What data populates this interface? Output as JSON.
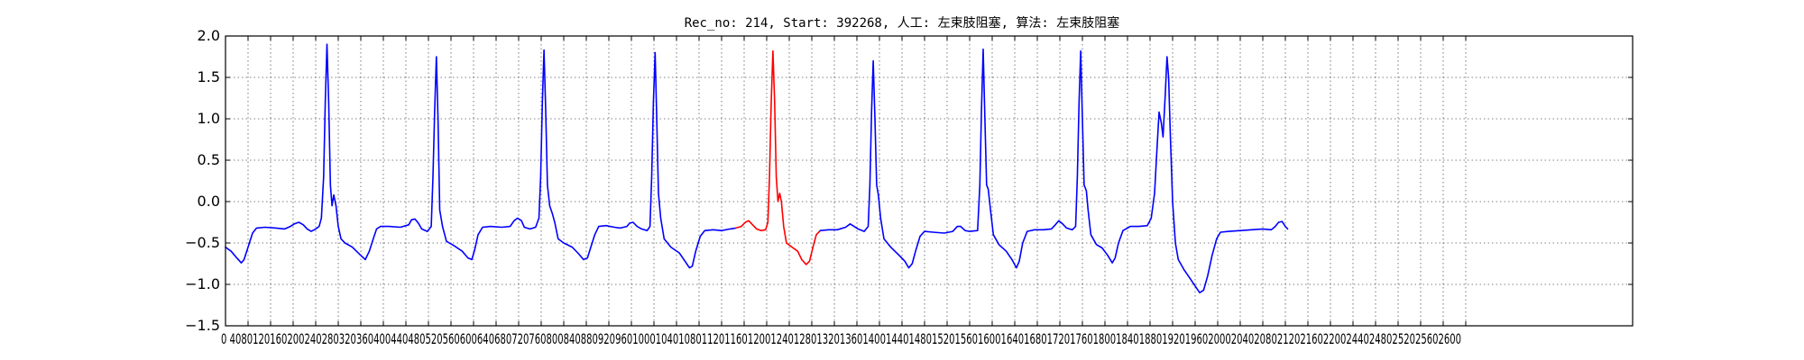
{
  "chart_data": {
    "type": "line",
    "title": "Rec_no: 214, Start: 392268, 人工: 左束肢阻塞, 算法: 左束肢阻塞",
    "xlabel": "",
    "ylabel": "",
    "xlim": [
      0,
      2200
    ],
    "ylim": [
      -1.5,
      2.0
    ],
    "x_ticks": [
      0,
      40,
      80,
      120,
      160,
      200,
      240,
      280,
      320,
      360,
      400,
      440,
      480,
      520,
      560,
      600,
      640,
      680,
      720,
      760,
      800,
      840,
      880,
      920,
      960,
      1000,
      1040,
      1080,
      1120,
      1160,
      1200,
      1240,
      1280,
      1320,
      1360,
      1400,
      1440,
      1480,
      1520,
      1560,
      1600,
      1640,
      1680,
      1720,
      1760,
      1800,
      1840,
      1880,
      1920,
      1960,
      2000,
      2040,
      2080,
      2120,
      2160,
      2200
    ],
    "x_tick_labels_text": "0 4080120160200240280320360400440480520560600640680720760800840880920960100010401080112011601200124012801320136014001440148015201560160016401680172017601800184018801920196020002040208021202160220024402480252025602600",
    "y_ticks": [
      -1.5,
      -1.0,
      -0.5,
      0.0,
      0.5,
      1.0,
      1.5,
      2.0
    ],
    "y_tick_labels": [
      "−1.5",
      "−1.0",
      "−0.5",
      "0.0",
      "0.5",
      "1.0",
      "1.5",
      "2.0"
    ],
    "grid": true,
    "series": [
      {
        "color": "#0000ff",
        "points": [
          [
            0,
            -0.55
          ],
          [
            10,
            -0.6
          ],
          [
            20,
            -0.68
          ],
          [
            28,
            -0.74
          ],
          [
            33,
            -0.7
          ],
          [
            40,
            -0.55
          ],
          [
            48,
            -0.38
          ],
          [
            55,
            -0.32
          ],
          [
            70,
            -0.31
          ],
          [
            90,
            -0.32
          ],
          [
            105,
            -0.33
          ],
          [
            115,
            -0.3
          ],
          [
            122,
            -0.27
          ],
          [
            130,
            -0.25
          ],
          [
            138,
            -0.28
          ],
          [
            145,
            -0.33
          ],
          [
            152,
            -0.36
          ],
          [
            160,
            -0.33
          ],
          [
            166,
            -0.3
          ],
          [
            170,
            -0.2
          ],
          [
            174,
            0.3
          ],
          [
            177,
            1.2
          ],
          [
            180,
            1.9
          ],
          [
            183,
            1.2
          ],
          [
            186,
            0.2
          ],
          [
            189,
            -0.05
          ],
          [
            192,
            0.08
          ],
          [
            196,
            -0.05
          ],
          [
            200,
            -0.3
          ],
          [
            205,
            -0.45
          ],
          [
            212,
            -0.5
          ],
          [
            225,
            -0.55
          ],
          [
            240,
            -0.65
          ],
          [
            248,
            -0.7
          ],
          [
            255,
            -0.6
          ],
          [
            262,
            -0.45
          ],
          [
            268,
            -0.33
          ],
          [
            275,
            -0.3
          ],
          [
            290,
            -0.3
          ],
          [
            310,
            -0.31
          ],
          [
            325,
            -0.28
          ],
          [
            330,
            -0.22
          ],
          [
            336,
            -0.21
          ],
          [
            342,
            -0.26
          ],
          [
            348,
            -0.33
          ],
          [
            358,
            -0.36
          ],
          [
            365,
            -0.3
          ],
          [
            368,
            0.3
          ],
          [
            371,
            1.1
          ],
          [
            374,
            1.75
          ],
          [
            377,
            1.0
          ],
          [
            380,
            -0.1
          ],
          [
            385,
            -0.3
          ],
          [
            392,
            -0.48
          ],
          [
            405,
            -0.53
          ],
          [
            420,
            -0.6
          ],
          [
            430,
            -0.68
          ],
          [
            437,
            -0.7
          ],
          [
            442,
            -0.58
          ],
          [
            448,
            -0.4
          ],
          [
            456,
            -0.31
          ],
          [
            470,
            -0.3
          ],
          [
            490,
            -0.31
          ],
          [
            505,
            -0.3
          ],
          [
            512,
            -0.23
          ],
          [
            518,
            -0.2
          ],
          [
            525,
            -0.23
          ],
          [
            530,
            -0.31
          ],
          [
            540,
            -0.33
          ],
          [
            550,
            -0.31
          ],
          [
            556,
            -0.2
          ],
          [
            559,
            0.3
          ],
          [
            562,
            1.2
          ],
          [
            565,
            1.83
          ],
          [
            568,
            1.1
          ],
          [
            571,
            0.2
          ],
          [
            575,
            -0.05
          ],
          [
            580,
            -0.15
          ],
          [
            584,
            -0.25
          ],
          [
            590,
            -0.45
          ],
          [
            600,
            -0.5
          ],
          [
            615,
            -0.55
          ],
          [
            625,
            -0.62
          ],
          [
            635,
            -0.7
          ],
          [
            642,
            -0.68
          ],
          [
            648,
            -0.55
          ],
          [
            655,
            -0.4
          ],
          [
            662,
            -0.3
          ],
          [
            675,
            -0.29
          ],
          [
            690,
            -0.31
          ],
          [
            700,
            -0.32
          ],
          [
            712,
            -0.3
          ],
          [
            717,
            -0.26
          ],
          [
            723,
            -0.25
          ],
          [
            730,
            -0.3
          ],
          [
            738,
            -0.33
          ],
          [
            748,
            -0.35
          ],
          [
            753,
            -0.3
          ],
          [
            756,
            0.3
          ],
          [
            759,
            1.2
          ],
          [
            762,
            1.8
          ],
          [
            765,
            1.0
          ],
          [
            768,
            0.1
          ],
          [
            772,
            -0.2
          ],
          [
            778,
            -0.45
          ],
          [
            790,
            -0.55
          ],
          [
            805,
            -0.62
          ],
          [
            815,
            -0.72
          ],
          [
            823,
            -0.8
          ],
          [
            828,
            -0.78
          ],
          [
            834,
            -0.6
          ],
          [
            842,
            -0.42
          ],
          [
            850,
            -0.35
          ],
          [
            865,
            -0.34
          ],
          [
            880,
            -0.35
          ],
          [
            895,
            -0.33
          ],
          [
            905,
            -0.32
          ]
        ]
      },
      {
        "color": "#ff0000",
        "points": [
          [
            905,
            -0.32
          ],
          [
            915,
            -0.3
          ],
          [
            922,
            -0.25
          ],
          [
            928,
            -0.23
          ],
          [
            935,
            -0.28
          ],
          [
            942,
            -0.33
          ],
          [
            950,
            -0.35
          ],
          [
            958,
            -0.34
          ],
          [
            962,
            -0.25
          ],
          [
            965,
            0.3
          ],
          [
            968,
            1.2
          ],
          [
            971,
            1.82
          ],
          [
            974,
            1.2
          ],
          [
            977,
            0.3
          ],
          [
            980,
            0.0
          ],
          [
            983,
            0.1
          ],
          [
            986,
            0.0
          ],
          [
            990,
            -0.3
          ],
          [
            995,
            -0.5
          ],
          [
            1005,
            -0.55
          ],
          [
            1015,
            -0.6
          ],
          [
            1022,
            -0.7
          ],
          [
            1030,
            -0.76
          ],
          [
            1036,
            -0.72
          ],
          [
            1042,
            -0.55
          ],
          [
            1048,
            -0.4
          ],
          [
            1055,
            -0.35
          ]
        ]
      },
      {
        "color": "#0000ff",
        "points": [
          [
            1055,
            -0.35
          ],
          [
            1070,
            -0.34
          ],
          [
            1085,
            -0.34
          ],
          [
            1100,
            -0.31
          ],
          [
            1108,
            -0.27
          ],
          [
            1115,
            -0.3
          ],
          [
            1122,
            -0.33
          ],
          [
            1133,
            -0.36
          ],
          [
            1140,
            -0.3
          ],
          [
            1143,
            0.2
          ],
          [
            1146,
            1.1
          ],
          [
            1149,
            1.7
          ],
          [
            1152,
            1.0
          ],
          [
            1155,
            0.2
          ],
          [
            1158,
            0.08
          ],
          [
            1162,
            -0.2
          ],
          [
            1168,
            -0.45
          ],
          [
            1180,
            -0.55
          ],
          [
            1195,
            -0.65
          ],
          [
            1205,
            -0.72
          ],
          [
            1212,
            -0.8
          ],
          [
            1218,
            -0.75
          ],
          [
            1224,
            -0.6
          ],
          [
            1232,
            -0.42
          ],
          [
            1240,
            -0.36
          ],
          [
            1255,
            -0.37
          ],
          [
            1275,
            -0.38
          ],
          [
            1290,
            -0.36
          ],
          [
            1298,
            -0.3
          ],
          [
            1304,
            -0.3
          ],
          [
            1312,
            -0.35
          ],
          [
            1320,
            -0.36
          ],
          [
            1334,
            -0.35
          ],
          [
            1338,
            0.2
          ],
          [
            1341,
            1.1
          ],
          [
            1344,
            1.84
          ],
          [
            1347,
            1.0
          ],
          [
            1350,
            0.2
          ],
          [
            1353,
            0.15
          ],
          [
            1357,
            -0.1
          ],
          [
            1362,
            -0.4
          ],
          [
            1372,
            -0.52
          ],
          [
            1385,
            -0.6
          ],
          [
            1395,
            -0.7
          ],
          [
            1403,
            -0.8
          ],
          [
            1408,
            -0.72
          ],
          [
            1414,
            -0.5
          ],
          [
            1422,
            -0.36
          ],
          [
            1435,
            -0.34
          ],
          [
            1450,
            -0.34
          ],
          [
            1465,
            -0.33
          ],
          [
            1472,
            -0.28
          ],
          [
            1478,
            -0.23
          ],
          [
            1485,
            -0.27
          ],
          [
            1492,
            -0.32
          ],
          [
            1502,
            -0.34
          ],
          [
            1508,
            -0.3
          ],
          [
            1511,
            0.3
          ],
          [
            1514,
            1.2
          ],
          [
            1517,
            1.82
          ],
          [
            1520,
            1.0
          ],
          [
            1523,
            0.2
          ],
          [
            1527,
            0.13
          ],
          [
            1530,
            -0.1
          ],
          [
            1535,
            -0.4
          ],
          [
            1545,
            -0.52
          ],
          [
            1555,
            -0.56
          ],
          [
            1565,
            -0.65
          ],
          [
            1573,
            -0.74
          ],
          [
            1578,
            -0.68
          ],
          [
            1584,
            -0.5
          ],
          [
            1592,
            -0.35
          ],
          [
            1605,
            -0.3
          ],
          [
            1620,
            -0.3
          ],
          [
            1635,
            -0.29
          ],
          [
            1642,
            -0.2
          ],
          [
            1648,
            0.1
          ],
          [
            1652,
            0.6
          ],
          [
            1656,
            1.08
          ],
          [
            1660,
            0.95
          ],
          [
            1663,
            0.78
          ],
          [
            1667,
            1.3
          ],
          [
            1670,
            1.75
          ],
          [
            1673,
            1.5
          ],
          [
            1676,
            0.8
          ],
          [
            1680,
            0.0
          ],
          [
            1685,
            -0.5
          ],
          [
            1690,
            -0.7
          ],
          [
            1700,
            -0.82
          ],
          [
            1710,
            -0.92
          ],
          [
            1720,
            -1.02
          ],
          [
            1728,
            -1.1
          ],
          [
            1735,
            -1.07
          ],
          [
            1742,
            -0.9
          ],
          [
            1750,
            -0.65
          ],
          [
            1758,
            -0.45
          ],
          [
            1765,
            -0.37
          ],
          [
            1780,
            -0.36
          ],
          [
            1800,
            -0.35
          ],
          [
            1820,
            -0.34
          ],
          [
            1840,
            -0.33
          ],
          [
            1855,
            -0.34
          ],
          [
            1862,
            -0.3
          ],
          [
            1868,
            -0.25
          ],
          [
            1874,
            -0.24
          ],
          [
            1880,
            -0.3
          ],
          [
            1884,
            -0.33
          ]
        ]
      }
    ]
  }
}
